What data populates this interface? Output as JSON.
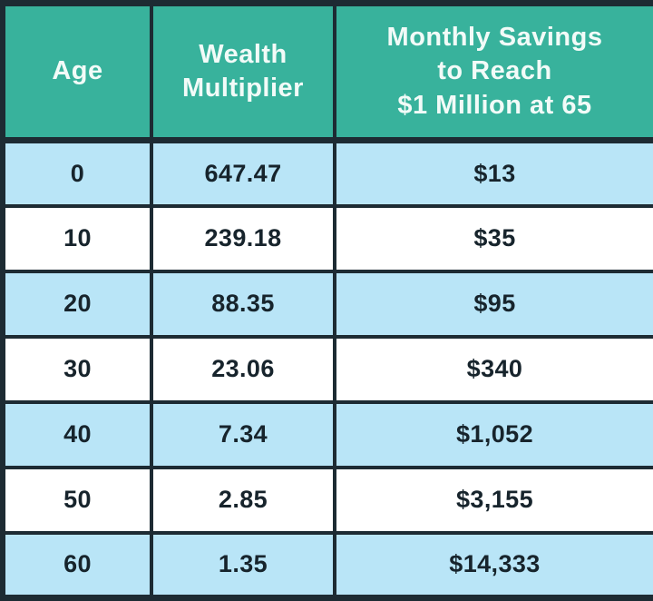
{
  "table": {
    "columns": [
      {
        "label": "Age"
      },
      {
        "label": "Wealth\nMultiplier"
      },
      {
        "label": "Monthly Savings\nto Reach\n$1 Million at 65"
      }
    ],
    "rows": [
      {
        "age": "0",
        "multiplier": "647.47",
        "savings": "$13"
      },
      {
        "age": "10",
        "multiplier": "239.18",
        "savings": "$35"
      },
      {
        "age": "20",
        "multiplier": "88.35",
        "savings": "$95"
      },
      {
        "age": "30",
        "multiplier": "23.06",
        "savings": "$340"
      },
      {
        "age": "40",
        "multiplier": "7.34",
        "savings": "$1,052"
      },
      {
        "age": "50",
        "multiplier": "2.85",
        "savings": "$3,155"
      },
      {
        "age": "60",
        "multiplier": "1.35",
        "savings": "$14,333"
      }
    ]
  },
  "colors": {
    "header_bg": "#38b29c",
    "header_text": "#f2fbf8",
    "row_alt_bg": "#b9e5f7",
    "row_bg": "#ffffff",
    "border": "#1d2b33",
    "body_text": "#17242c"
  }
}
